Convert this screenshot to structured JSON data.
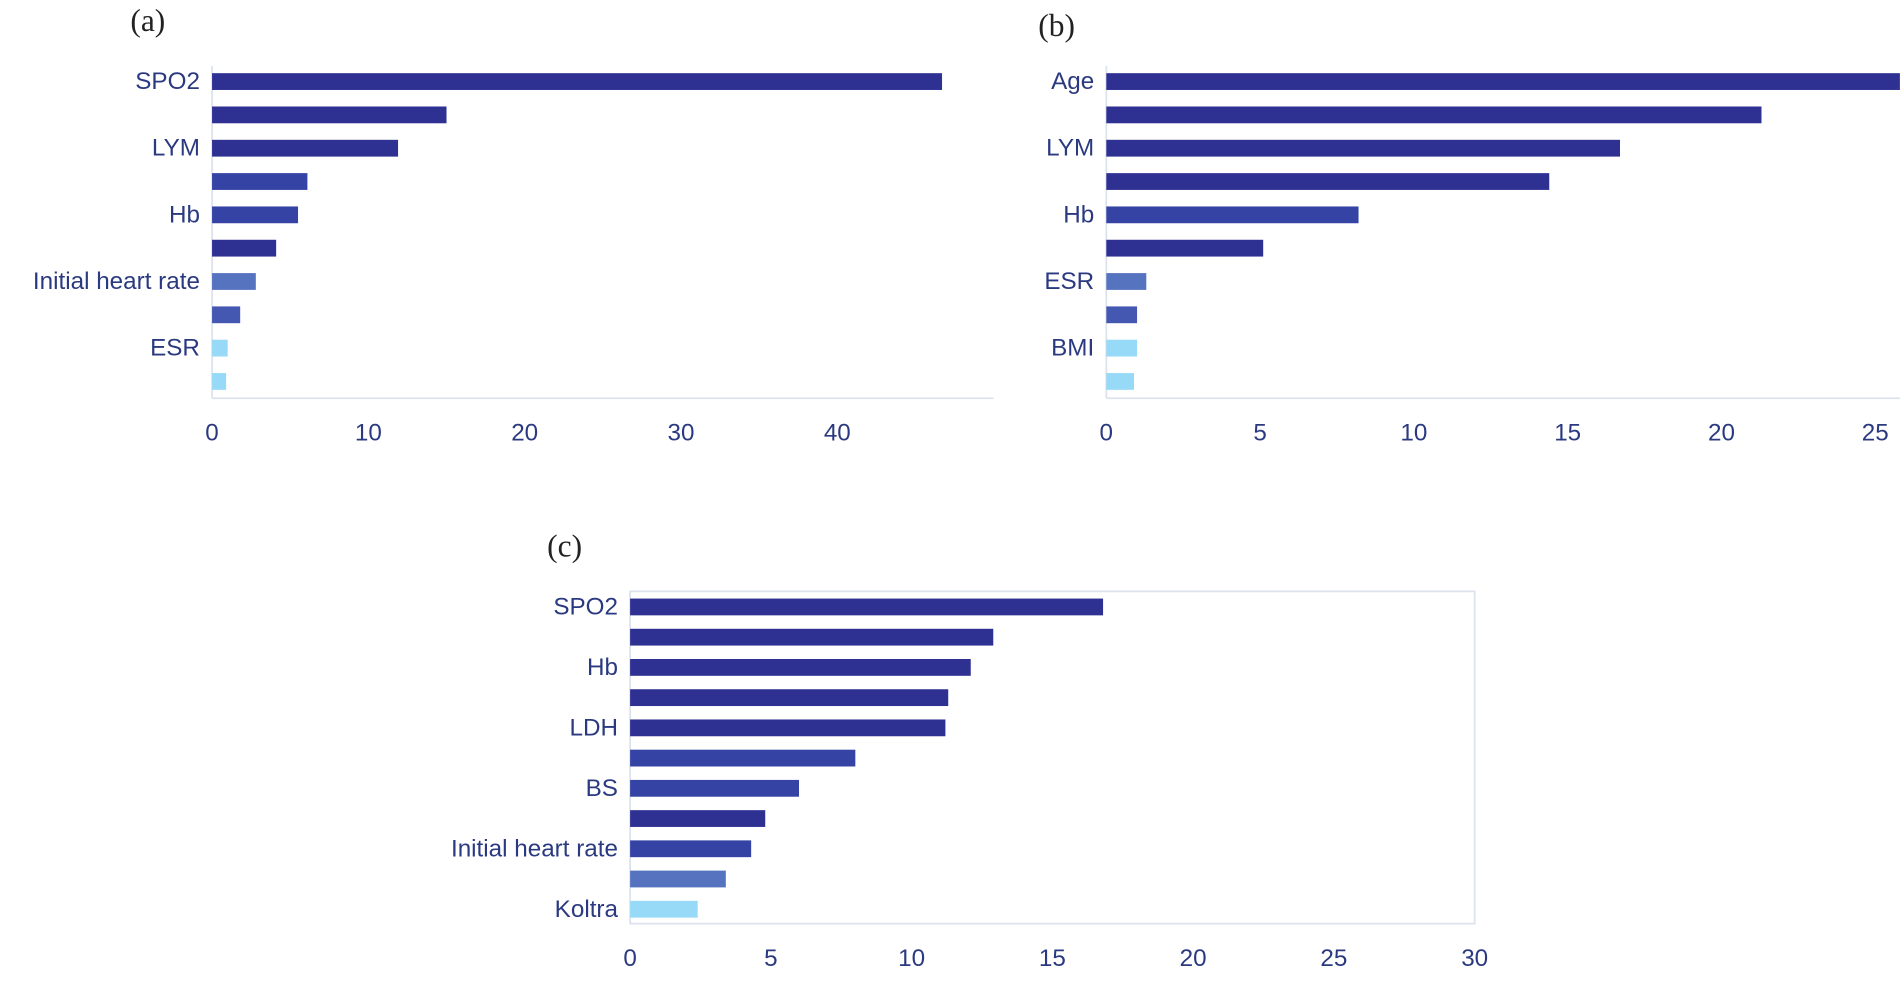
{
  "chart_data": [
    {
      "type": "barh",
      "label": "(a)",
      "categories": [
        "SPO2",
        null,
        "LYM",
        null,
        "Hb",
        null,
        "Initial heart rate",
        null,
        "ESR",
        null
      ],
      "values": [
        46.7,
        15.0,
        11.9,
        6.1,
        5.5,
        4.1,
        2.8,
        1.8,
        1.0,
        0.9
      ],
      "colors": [
        "#2e3192",
        "#2e3192",
        "#2e3192",
        "#3543a4",
        "#3543a4",
        "#2e3192",
        "#5573bf",
        "#4458b2",
        "#97daf7",
        "#97daf7"
      ],
      "xlim": [
        0,
        50
      ],
      "xticks": [
        0,
        10,
        20,
        30,
        40
      ]
    },
    {
      "type": "barh",
      "label": "(b)",
      "categories": [
        "Age",
        null,
        "LYM",
        null,
        "Hb",
        null,
        "ESR",
        null,
        "BMI",
        null
      ],
      "values": [
        25.8,
        21.3,
        16.7,
        14.4,
        8.2,
        5.1,
        1.3,
        1.0,
        1.0,
        0.9
      ],
      "colors": [
        "#2e3192",
        "#2e3192",
        "#2e3192",
        "#2e3192",
        "#3543a4",
        "#2e3192",
        "#5573bf",
        "#4458b2",
        "#97daf7",
        "#97daf7"
      ],
      "xlim": [
        0,
        26
      ],
      "xticks": [
        0,
        5,
        10,
        15,
        20,
        25
      ]
    },
    {
      "type": "barh",
      "label": "(c)",
      "categories": [
        "SPO2",
        null,
        "Hb",
        null,
        "LDH",
        null,
        "BS",
        null,
        "Initial heart rate",
        null,
        "Koltra"
      ],
      "values": [
        16.8,
        12.9,
        12.1,
        11.3,
        11.2,
        8.0,
        6.0,
        4.8,
        4.3,
        3.4,
        2.4
      ],
      "colors": [
        "#2e3192",
        "#2e3192",
        "#2e3192",
        "#2e3192",
        "#2e3192",
        "#3543a4",
        "#3543a4",
        "#2e3192",
        "#3543a4",
        "#5573bf",
        "#97daf7"
      ],
      "xlim": [
        0,
        30
      ],
      "xticks": [
        0,
        5,
        10,
        15,
        20,
        25,
        30
      ],
      "frame": true
    }
  ]
}
